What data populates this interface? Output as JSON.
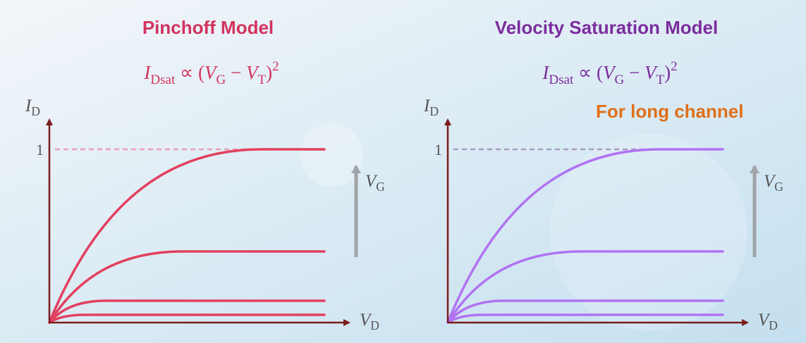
{
  "panels": [
    {
      "title": "Pinchoff Model",
      "title_color": "#d2345e",
      "curve_color": "#e2405f",
      "dash_color": "#eaa0b4",
      "formula": [
        "I",
        "Dsat",
        " ∝ (",
        "V",
        "G",
        " − ",
        "V",
        "T",
        ")",
        "2"
      ],
      "y_label": [
        "I",
        "D"
      ],
      "x_label": [
        "V",
        "D"
      ],
      "y_tick": "1",
      "arrow_label": [
        "V",
        "G"
      ]
    },
    {
      "title": "Velocity Saturation Model",
      "title_color": "#7b2c9e",
      "curve_color": "#b173f2",
      "dash_color": "#a89ac8",
      "formula": [
        "I",
        "Dsat",
        " ∝ (",
        "V",
        "G",
        " − ",
        "V",
        "T",
        ")",
        "2"
      ],
      "y_label": [
        "I",
        "D"
      ],
      "x_label": [
        "V",
        "D"
      ],
      "y_tick": "1",
      "arrow_label": [
        "V",
        "G"
      ],
      "note": "For long channel"
    }
  ]
}
